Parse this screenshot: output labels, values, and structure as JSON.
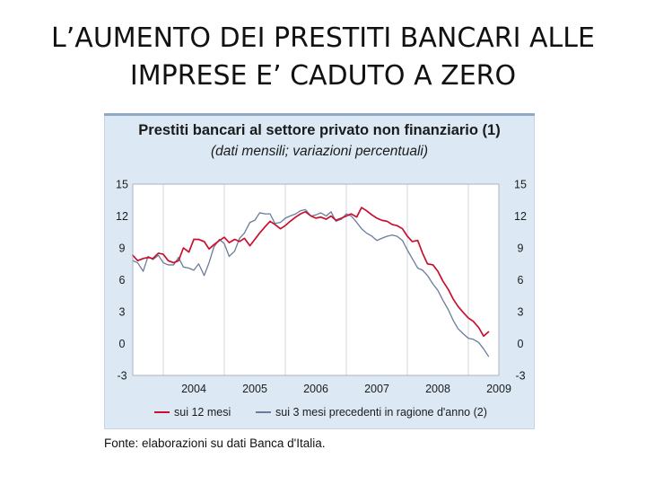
{
  "slide": {
    "title_line1": "L’AUMENTO DEI PRESTITI BANCARI ALLE",
    "title_line2": "IMPRESE E’ CADUTO A ZERO"
  },
  "source": "Fonte: elaborazioni su dati Banca d'Italia.",
  "colors": {
    "panel_bg": "#dce9f5",
    "plot_bg": "#ffffff",
    "series_12m": "#c8102e",
    "series_3m": "#6a7c99"
  },
  "chart_data": {
    "type": "line",
    "title": "Prestiti bancari al settore privato non finanziario (1)",
    "subtitle": "(dati mensili; variazioni percentuali)",
    "xlabel": "",
    "ylabel": "",
    "x_tick_labels": [
      "2004",
      "2005",
      "2006",
      "2007",
      "2008",
      "2009"
    ],
    "y_ticks": [
      15,
      12,
      9,
      6,
      3,
      0,
      -3
    ],
    "ylim": [
      -3,
      15
    ],
    "xlim": [
      2003.5,
      2009.5
    ],
    "grid": "vertical",
    "secondary_y_axis": true,
    "legend_position": "bottom",
    "series": [
      {
        "name": "sui 12 mesi",
        "color": "#c8102e",
        "points": [
          [
            2003.5,
            8.3
          ],
          [
            2003.58,
            7.8
          ],
          [
            2003.67,
            8.0
          ],
          [
            2003.75,
            8.1
          ],
          [
            2003.83,
            8.0
          ],
          [
            2003.92,
            8.5
          ],
          [
            2004.0,
            8.4
          ],
          [
            2004.08,
            7.8
          ],
          [
            2004.17,
            7.6
          ],
          [
            2004.25,
            7.8
          ],
          [
            2004.33,
            9.0
          ],
          [
            2004.42,
            8.6
          ],
          [
            2004.5,
            9.8
          ],
          [
            2004.58,
            9.8
          ],
          [
            2004.67,
            9.6
          ],
          [
            2004.75,
            8.9
          ],
          [
            2004.83,
            9.3
          ],
          [
            2004.92,
            9.7
          ],
          [
            2005.0,
            10.0
          ],
          [
            2005.08,
            9.5
          ],
          [
            2005.17,
            9.8
          ],
          [
            2005.25,
            9.6
          ],
          [
            2005.33,
            9.9
          ],
          [
            2005.42,
            9.2
          ],
          [
            2005.5,
            9.8
          ],
          [
            2005.58,
            10.4
          ],
          [
            2005.67,
            11.0
          ],
          [
            2005.75,
            11.5
          ],
          [
            2005.83,
            11.2
          ],
          [
            2005.92,
            10.8
          ],
          [
            2006.0,
            11.1
          ],
          [
            2006.08,
            11.5
          ],
          [
            2006.17,
            11.9
          ],
          [
            2006.25,
            12.2
          ],
          [
            2006.33,
            12.4
          ],
          [
            2006.42,
            12.0
          ],
          [
            2006.5,
            11.8
          ],
          [
            2006.58,
            11.9
          ],
          [
            2006.67,
            11.7
          ],
          [
            2006.75,
            12.0
          ],
          [
            2006.83,
            11.6
          ],
          [
            2006.92,
            11.8
          ],
          [
            2007.0,
            12.0
          ],
          [
            2007.08,
            12.2
          ],
          [
            2007.17,
            11.9
          ],
          [
            2007.25,
            12.8
          ],
          [
            2007.33,
            12.5
          ],
          [
            2007.42,
            12.1
          ],
          [
            2007.5,
            11.8
          ],
          [
            2007.58,
            11.6
          ],
          [
            2007.67,
            11.5
          ],
          [
            2007.75,
            11.2
          ],
          [
            2007.83,
            11.1
          ],
          [
            2007.92,
            10.8
          ],
          [
            2008.0,
            10.1
          ],
          [
            2008.08,
            9.6
          ],
          [
            2008.17,
            9.7
          ],
          [
            2008.25,
            8.5
          ],
          [
            2008.33,
            7.5
          ],
          [
            2008.42,
            7.4
          ],
          [
            2008.5,
            6.8
          ],
          [
            2008.58,
            5.9
          ],
          [
            2008.67,
            5.1
          ],
          [
            2008.75,
            4.2
          ],
          [
            2008.83,
            3.5
          ],
          [
            2008.92,
            2.9
          ],
          [
            2009.0,
            2.4
          ],
          [
            2009.08,
            2.1
          ],
          [
            2009.17,
            1.5
          ],
          [
            2009.25,
            0.7
          ],
          [
            2009.33,
            1.1
          ]
        ]
      },
      {
        "name": "sui 3 mesi precedenti in ragione d'anno (2)",
        "color": "#6a7c99",
        "points": [
          [
            2003.5,
            7.8
          ],
          [
            2003.58,
            7.6
          ],
          [
            2003.67,
            6.8
          ],
          [
            2003.75,
            8.2
          ],
          [
            2003.83,
            7.9
          ],
          [
            2003.92,
            8.3
          ],
          [
            2004.0,
            7.6
          ],
          [
            2004.08,
            7.4
          ],
          [
            2004.17,
            7.4
          ],
          [
            2004.25,
            8.1
          ],
          [
            2004.33,
            7.2
          ],
          [
            2004.42,
            7.1
          ],
          [
            2004.5,
            6.9
          ],
          [
            2004.58,
            7.5
          ],
          [
            2004.67,
            6.4
          ],
          [
            2004.75,
            7.6
          ],
          [
            2004.83,
            9.1
          ],
          [
            2004.92,
            9.8
          ],
          [
            2005.0,
            9.4
          ],
          [
            2005.08,
            8.2
          ],
          [
            2005.17,
            8.7
          ],
          [
            2005.25,
            9.9
          ],
          [
            2005.33,
            10.4
          ],
          [
            2005.42,
            11.4
          ],
          [
            2005.5,
            11.6
          ],
          [
            2005.58,
            12.3
          ],
          [
            2005.67,
            12.2
          ],
          [
            2005.75,
            12.2
          ],
          [
            2005.83,
            11.3
          ],
          [
            2005.92,
            11.4
          ],
          [
            2006.0,
            11.8
          ],
          [
            2006.08,
            12.0
          ],
          [
            2006.17,
            12.2
          ],
          [
            2006.25,
            12.5
          ],
          [
            2006.33,
            12.6
          ],
          [
            2006.42,
            12.0
          ],
          [
            2006.5,
            12.1
          ],
          [
            2006.58,
            12.3
          ],
          [
            2006.67,
            12.0
          ],
          [
            2006.75,
            12.4
          ],
          [
            2006.83,
            11.5
          ],
          [
            2006.92,
            11.7
          ],
          [
            2007.0,
            12.2
          ],
          [
            2007.08,
            12.0
          ],
          [
            2007.17,
            11.4
          ],
          [
            2007.25,
            10.8
          ],
          [
            2007.33,
            10.4
          ],
          [
            2007.42,
            10.1
          ],
          [
            2007.5,
            9.7
          ],
          [
            2007.58,
            9.9
          ],
          [
            2007.67,
            10.1
          ],
          [
            2007.75,
            10.2
          ],
          [
            2007.83,
            10.1
          ],
          [
            2007.92,
            9.7
          ],
          [
            2008.0,
            8.8
          ],
          [
            2008.08,
            8.0
          ],
          [
            2008.17,
            7.1
          ],
          [
            2008.25,
            6.9
          ],
          [
            2008.33,
            6.4
          ],
          [
            2008.42,
            5.6
          ],
          [
            2008.5,
            5.0
          ],
          [
            2008.58,
            4.1
          ],
          [
            2008.67,
            3.2
          ],
          [
            2008.75,
            2.2
          ],
          [
            2008.83,
            1.4
          ],
          [
            2008.92,
            0.9
          ],
          [
            2009.0,
            0.5
          ],
          [
            2009.08,
            0.4
          ],
          [
            2009.17,
            0.1
          ],
          [
            2009.25,
            -0.5
          ],
          [
            2009.33,
            -1.2
          ]
        ]
      }
    ]
  }
}
